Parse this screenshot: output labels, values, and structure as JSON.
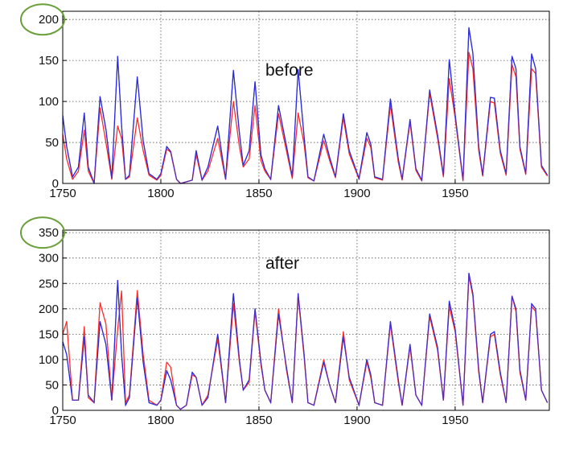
{
  "chart_data": [
    {
      "type": "line",
      "annotation": "before",
      "xlim": [
        1750,
        1998
      ],
      "ylim": [
        0,
        210
      ],
      "x_ticks": [
        1750,
        1800,
        1850,
        1900,
        1950
      ],
      "y_ticks": [
        0,
        50,
        100,
        150,
        200
      ],
      "highlighted_tick": "200",
      "grid": true,
      "colors": {
        "red": "#ff2a2a",
        "blue": "#2b2bdd",
        "highlight": "#6a9f3a"
      },
      "series": [
        {
          "color": "#2b2bdd",
          "x": [
            1750,
            1752,
            1755,
            1758,
            1761,
            1763,
            1766,
            1769,
            1772,
            1775,
            1778,
            1780,
            1782,
            1784,
            1788,
            1791,
            1794,
            1798,
            1800,
            1803,
            1805,
            1808,
            1810,
            1813,
            1816,
            1818,
            1821,
            1824,
            1829,
            1833,
            1837,
            1840,
            1842,
            1845,
            1848,
            1851,
            1853,
            1856,
            1860,
            1864,
            1867,
            1870,
            1873,
            1875,
            1878,
            1883,
            1886,
            1889,
            1893,
            1896,
            1901,
            1905,
            1907,
            1909,
            1913,
            1917,
            1921,
            1923,
            1927,
            1930,
            1933,
            1937,
            1941,
            1944,
            1947,
            1950,
            1954,
            1957,
            1959,
            1962,
            1964,
            1968,
            1970,
            1973,
            1976,
            1979,
            1981,
            1983,
            1986,
            1989,
            1991,
            1994,
            1997
          ],
          "values": [
            83,
            45,
            8,
            20,
            86,
            20,
            0,
            106,
            66,
            6,
            155,
            70,
            5,
            10,
            130,
            52,
            12,
            5,
            12,
            45,
            39,
            5,
            0,
            2,
            4,
            40,
            4,
            20,
            70,
            5,
            138,
            62,
            22,
            40,
            124,
            35,
            18,
            5,
            95,
            46,
            8,
            139,
            57,
            8,
            3,
            60,
            32,
            8,
            85,
            40,
            6,
            62,
            48,
            8,
            5,
            103,
            30,
            5,
            78,
            18,
            4,
            114,
            60,
            10,
            151,
            84,
            4,
            190,
            159,
            45,
            10,
            105,
            104,
            40,
            12,
            155,
            140,
            45,
            12,
            158,
            140,
            22,
            10
          ]
        },
        {
          "color": "#ff2a2a",
          "x": [
            1750,
            1752,
            1755,
            1758,
            1761,
            1763,
            1766,
            1769,
            1772,
            1775,
            1778,
            1780,
            1782,
            1784,
            1788,
            1791,
            1794,
            1798,
            1800,
            1803,
            1805,
            1808,
            1810,
            1813,
            1816,
            1818,
            1821,
            1824,
            1829,
            1833,
            1837,
            1840,
            1842,
            1845,
            1848,
            1851,
            1853,
            1856,
            1860,
            1864,
            1867,
            1870,
            1873,
            1875,
            1878,
            1883,
            1886,
            1889,
            1893,
            1896,
            1901,
            1905,
            1907,
            1909,
            1913,
            1917,
            1921,
            1923,
            1927,
            1930,
            1933,
            1937,
            1941,
            1944,
            1947,
            1950,
            1954,
            1957,
            1959,
            1962,
            1964,
            1968,
            1970,
            1973,
            1976,
            1979,
            1981,
            1983,
            1986,
            1989,
            1991,
            1994,
            1997
          ],
          "values": [
            60,
            30,
            5,
            15,
            65,
            15,
            0,
            92,
            50,
            5,
            70,
            55,
            5,
            8,
            80,
            40,
            10,
            4,
            10,
            42,
            38,
            5,
            0,
            2,
            4,
            35,
            4,
            15,
            55,
            5,
            100,
            45,
            20,
            30,
            95,
            28,
            15,
            5,
            85,
            40,
            6,
            86,
            48,
            7,
            3,
            52,
            28,
            7,
            80,
            36,
            5,
            55,
            44,
            7,
            4,
            96,
            26,
            4,
            75,
            16,
            3,
            110,
            56,
            8,
            128,
            80,
            3,
            160,
            140,
            40,
            9,
            100,
            98,
            37,
            10,
            145,
            130,
            42,
            11,
            140,
            134,
            20,
            9
          ]
        }
      ]
    },
    {
      "type": "line",
      "annotation": "after",
      "xlim": [
        1750,
        1998
      ],
      "ylim": [
        0,
        355
      ],
      "x_ticks": [
        1750,
        1800,
        1850,
        1900,
        1950
      ],
      "y_ticks": [
        0,
        50,
        100,
        150,
        200,
        250,
        300,
        350
      ],
      "highlighted_tick": "350",
      "grid": true,
      "colors": {
        "red": "#ff2a2a",
        "blue": "#2b2bdd",
        "highlight": "#6a9f3a"
      },
      "series": [
        {
          "color": "#2b2bdd",
          "x": [
            1750,
            1752,
            1755,
            1758,
            1761,
            1763,
            1766,
            1769,
            1772,
            1775,
            1778,
            1780,
            1782,
            1784,
            1788,
            1791,
            1794,
            1798,
            1800,
            1803,
            1805,
            1808,
            1810,
            1813,
            1816,
            1818,
            1821,
            1824,
            1829,
            1833,
            1837,
            1840,
            1842,
            1845,
            1848,
            1851,
            1853,
            1856,
            1860,
            1864,
            1867,
            1870,
            1873,
            1875,
            1878,
            1883,
            1886,
            1889,
            1893,
            1896,
            1901,
            1905,
            1907,
            1909,
            1913,
            1917,
            1921,
            1923,
            1927,
            1930,
            1933,
            1937,
            1941,
            1944,
            1947,
            1950,
            1954,
            1957,
            1959,
            1962,
            1964,
            1968,
            1970,
            1973,
            1976,
            1979,
            1981,
            1983,
            1986,
            1989,
            1991,
            1994,
            1997
          ],
          "values": [
            135,
            110,
            20,
            20,
            145,
            30,
            15,
            175,
            130,
            20,
            256,
            110,
            10,
            25,
            222,
            95,
            15,
            10,
            20,
            78,
            60,
            10,
            2,
            10,
            75,
            65,
            10,
            25,
            150,
            15,
            230,
            100,
            40,
            60,
            200,
            95,
            40,
            15,
            190,
            85,
            15,
            230,
            110,
            15,
            10,
            95,
            50,
            15,
            145,
            65,
            10,
            100,
            70,
            15,
            10,
            175,
            60,
            10,
            130,
            30,
            10,
            190,
            125,
            20,
            215,
            160,
            10,
            270,
            230,
            80,
            15,
            150,
            155,
            75,
            15,
            225,
            200,
            80,
            20,
            210,
            200,
            40,
            15
          ]
        },
        {
          "color": "#ff2a2a",
          "x": [
            1750,
            1752,
            1755,
            1758,
            1761,
            1763,
            1766,
            1769,
            1772,
            1775,
            1778,
            1780,
            1782,
            1784,
            1788,
            1791,
            1794,
            1798,
            1800,
            1803,
            1805,
            1808,
            1810,
            1813,
            1816,
            1818,
            1821,
            1824,
            1829,
            1833,
            1837,
            1840,
            1842,
            1845,
            1848,
            1851,
            1853,
            1856,
            1860,
            1864,
            1867,
            1870,
            1873,
            1875,
            1878,
            1883,
            1886,
            1889,
            1893,
            1896,
            1901,
            1905,
            1907,
            1909,
            1913,
            1917,
            1921,
            1923,
            1927,
            1930,
            1933,
            1937,
            1941,
            1944,
            1947,
            1950,
            1954,
            1957,
            1959,
            1962,
            1964,
            1968,
            1970,
            1973,
            1976,
            1979,
            1981,
            1983,
            1986,
            1989,
            1991,
            1994,
            1997
          ],
          "values": [
            150,
            175,
            20,
            20,
            165,
            25,
            15,
            212,
            170,
            20,
            160,
            235,
            15,
            30,
            236,
            110,
            20,
            10,
            20,
            95,
            85,
            10,
            2,
            10,
            70,
            65,
            10,
            30,
            140,
            15,
            210,
            95,
            40,
            55,
            195,
            90,
            40,
            15,
            200,
            80,
            15,
            225,
            105,
            15,
            10,
            100,
            50,
            15,
            155,
            60,
            10,
            95,
            65,
            15,
            10,
            170,
            55,
            10,
            125,
            30,
            10,
            185,
            120,
            20,
            205,
            155,
            10,
            265,
            225,
            75,
            15,
            145,
            150,
            70,
            15,
            225,
            195,
            75,
            20,
            205,
            195,
            40,
            15
          ]
        }
      ]
    }
  ]
}
